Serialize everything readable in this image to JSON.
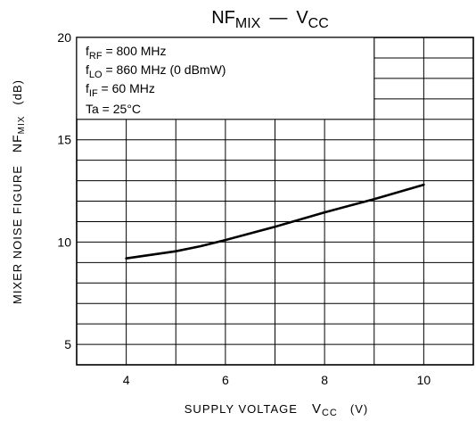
{
  "chart_data": {
    "type": "line",
    "title": {
      "main": "NF",
      "main_sub": "MIX",
      "sep": "—",
      "var": "V",
      "var_sub": "CC"
    },
    "xlabel": {
      "text": "SUPPLY VOLTAGE",
      "sym": "V",
      "sym_sub": "CC",
      "unit": "(V)"
    },
    "ylabel": {
      "text": "MIXER NOISE FIGURE",
      "sym": "NF",
      "sym_sub": "MIX",
      "unit": "(dB)"
    },
    "xlim": [
      3,
      11
    ],
    "ylim": [
      4,
      20
    ],
    "x_ticks": [
      4,
      6,
      8,
      10
    ],
    "y_ticks": [
      5,
      10,
      15,
      20
    ],
    "grid": true,
    "grid_step_x": 1,
    "grid_step_y": 1,
    "conditions": [
      {
        "pre": "f",
        "sub": "RF",
        "post": " = 800 MHz"
      },
      {
        "pre": "f",
        "sub": "LO",
        "post": " = 860 MHz  (0 dBmW)"
      },
      {
        "pre": "f",
        "sub": "IF",
        "post": " = 60 MHz"
      },
      {
        "pre": "Ta = 25°C",
        "sub": "",
        "post": ""
      }
    ],
    "series": [
      {
        "x": [
          4.0,
          5.0,
          5.5,
          6.0,
          7.0,
          8.0,
          9.0,
          10.0
        ],
        "y": [
          9.2,
          9.55,
          9.8,
          10.1,
          10.75,
          11.45,
          12.1,
          12.8
        ]
      }
    ]
  }
}
